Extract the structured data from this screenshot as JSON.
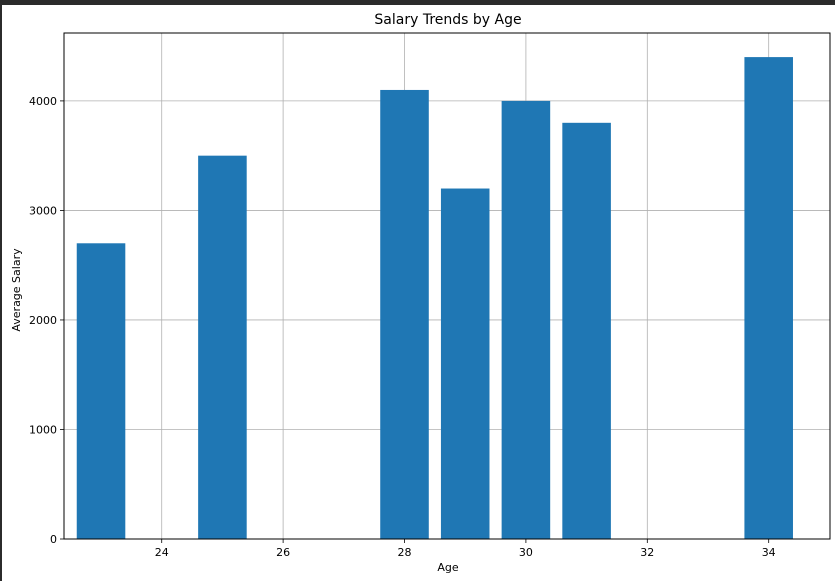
{
  "chart_data": {
    "type": "bar",
    "title": "Salary Trends by Age",
    "xlabel": "Age",
    "ylabel": "Average Salary",
    "x": [
      23,
      25,
      28,
      29,
      30,
      31,
      34
    ],
    "values": [
      2700,
      3500,
      4100,
      3200,
      4000,
      3800,
      4400
    ],
    "bar_width": 0.8,
    "xlim": [
      22.39,
      35.01
    ],
    "ylim": [
      0,
      4620
    ],
    "xticks": [
      24,
      26,
      28,
      30,
      32,
      34
    ],
    "yticks": [
      0,
      1000,
      2000,
      3000,
      4000
    ],
    "grid": true,
    "bar_color": "#1f77b4"
  }
}
